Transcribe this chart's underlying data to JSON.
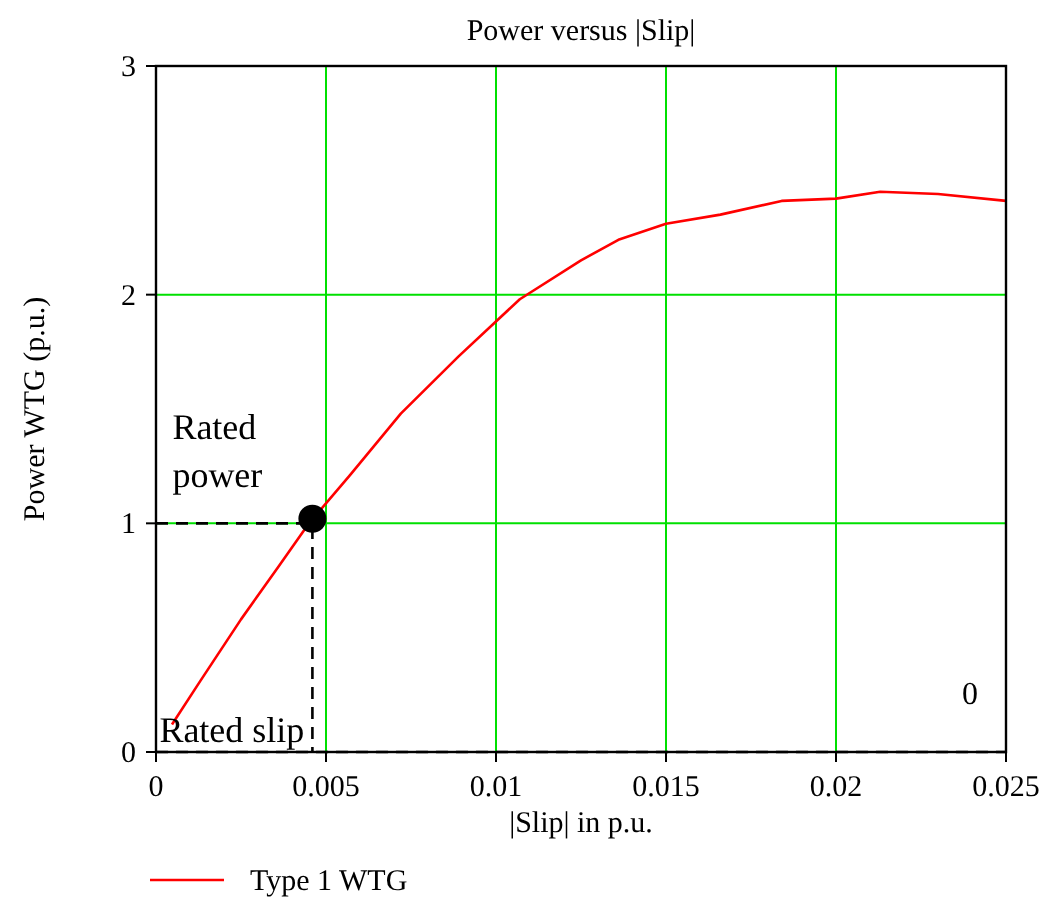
{
  "chart_data": {
    "type": "line",
    "title": "Power versus |Slip|",
    "xlabel": "|Slip| in p.u.",
    "ylabel": "Power WTG (p.u.)",
    "xlim": [
      0,
      0.025
    ],
    "xticks": [
      0,
      0.005,
      0.01,
      0.015,
      0.02,
      0.025
    ],
    "ylim": [
      0,
      3
    ],
    "yticks": [
      0,
      1,
      2,
      3
    ],
    "grid": true,
    "legend": "bottom",
    "series": [
      {
        "name": "Type 1 WTG",
        "color": "#ff0000",
        "x": [
          0.00047,
          0.0013,
          0.0025,
          0.0036,
          0.0045,
          0.0057,
          0.0072,
          0.0089,
          0.0107,
          0.0125,
          0.0136,
          0.015,
          0.0166,
          0.0184,
          0.02,
          0.0213,
          0.023,
          0.025
        ],
        "values": [
          0.12,
          0.31,
          0.58,
          0.81,
          1.0,
          1.21,
          1.48,
          1.73,
          1.98,
          2.15,
          2.24,
          2.31,
          2.35,
          2.41,
          2.42,
          2.45,
          2.44,
          2.41
        ]
      },
      {
        "color": "#000000",
        "type": "line",
        "line_style": "dashed",
        "x": [
          0,
          0.0046,
          0.0046
        ],
        "values": [
          1,
          1,
          0
        ]
      },
      {
        "color": "#000000",
        "type": "scatter",
        "marker": "circle",
        "x": [
          0.0046
        ],
        "values": [
          1.02
        ]
      }
    ],
    "ref_lines": [
      {
        "axis": "y",
        "value": 0,
        "color": "#000000",
        "line_style": "dashed"
      }
    ],
    "annotations": [
      {
        "text": "Rated power",
        "x": 0.0046,
        "y": 1.02
      },
      {
        "text": "Rated slip",
        "x": 0.0046,
        "y": 0
      },
      "0"
    ]
  }
}
